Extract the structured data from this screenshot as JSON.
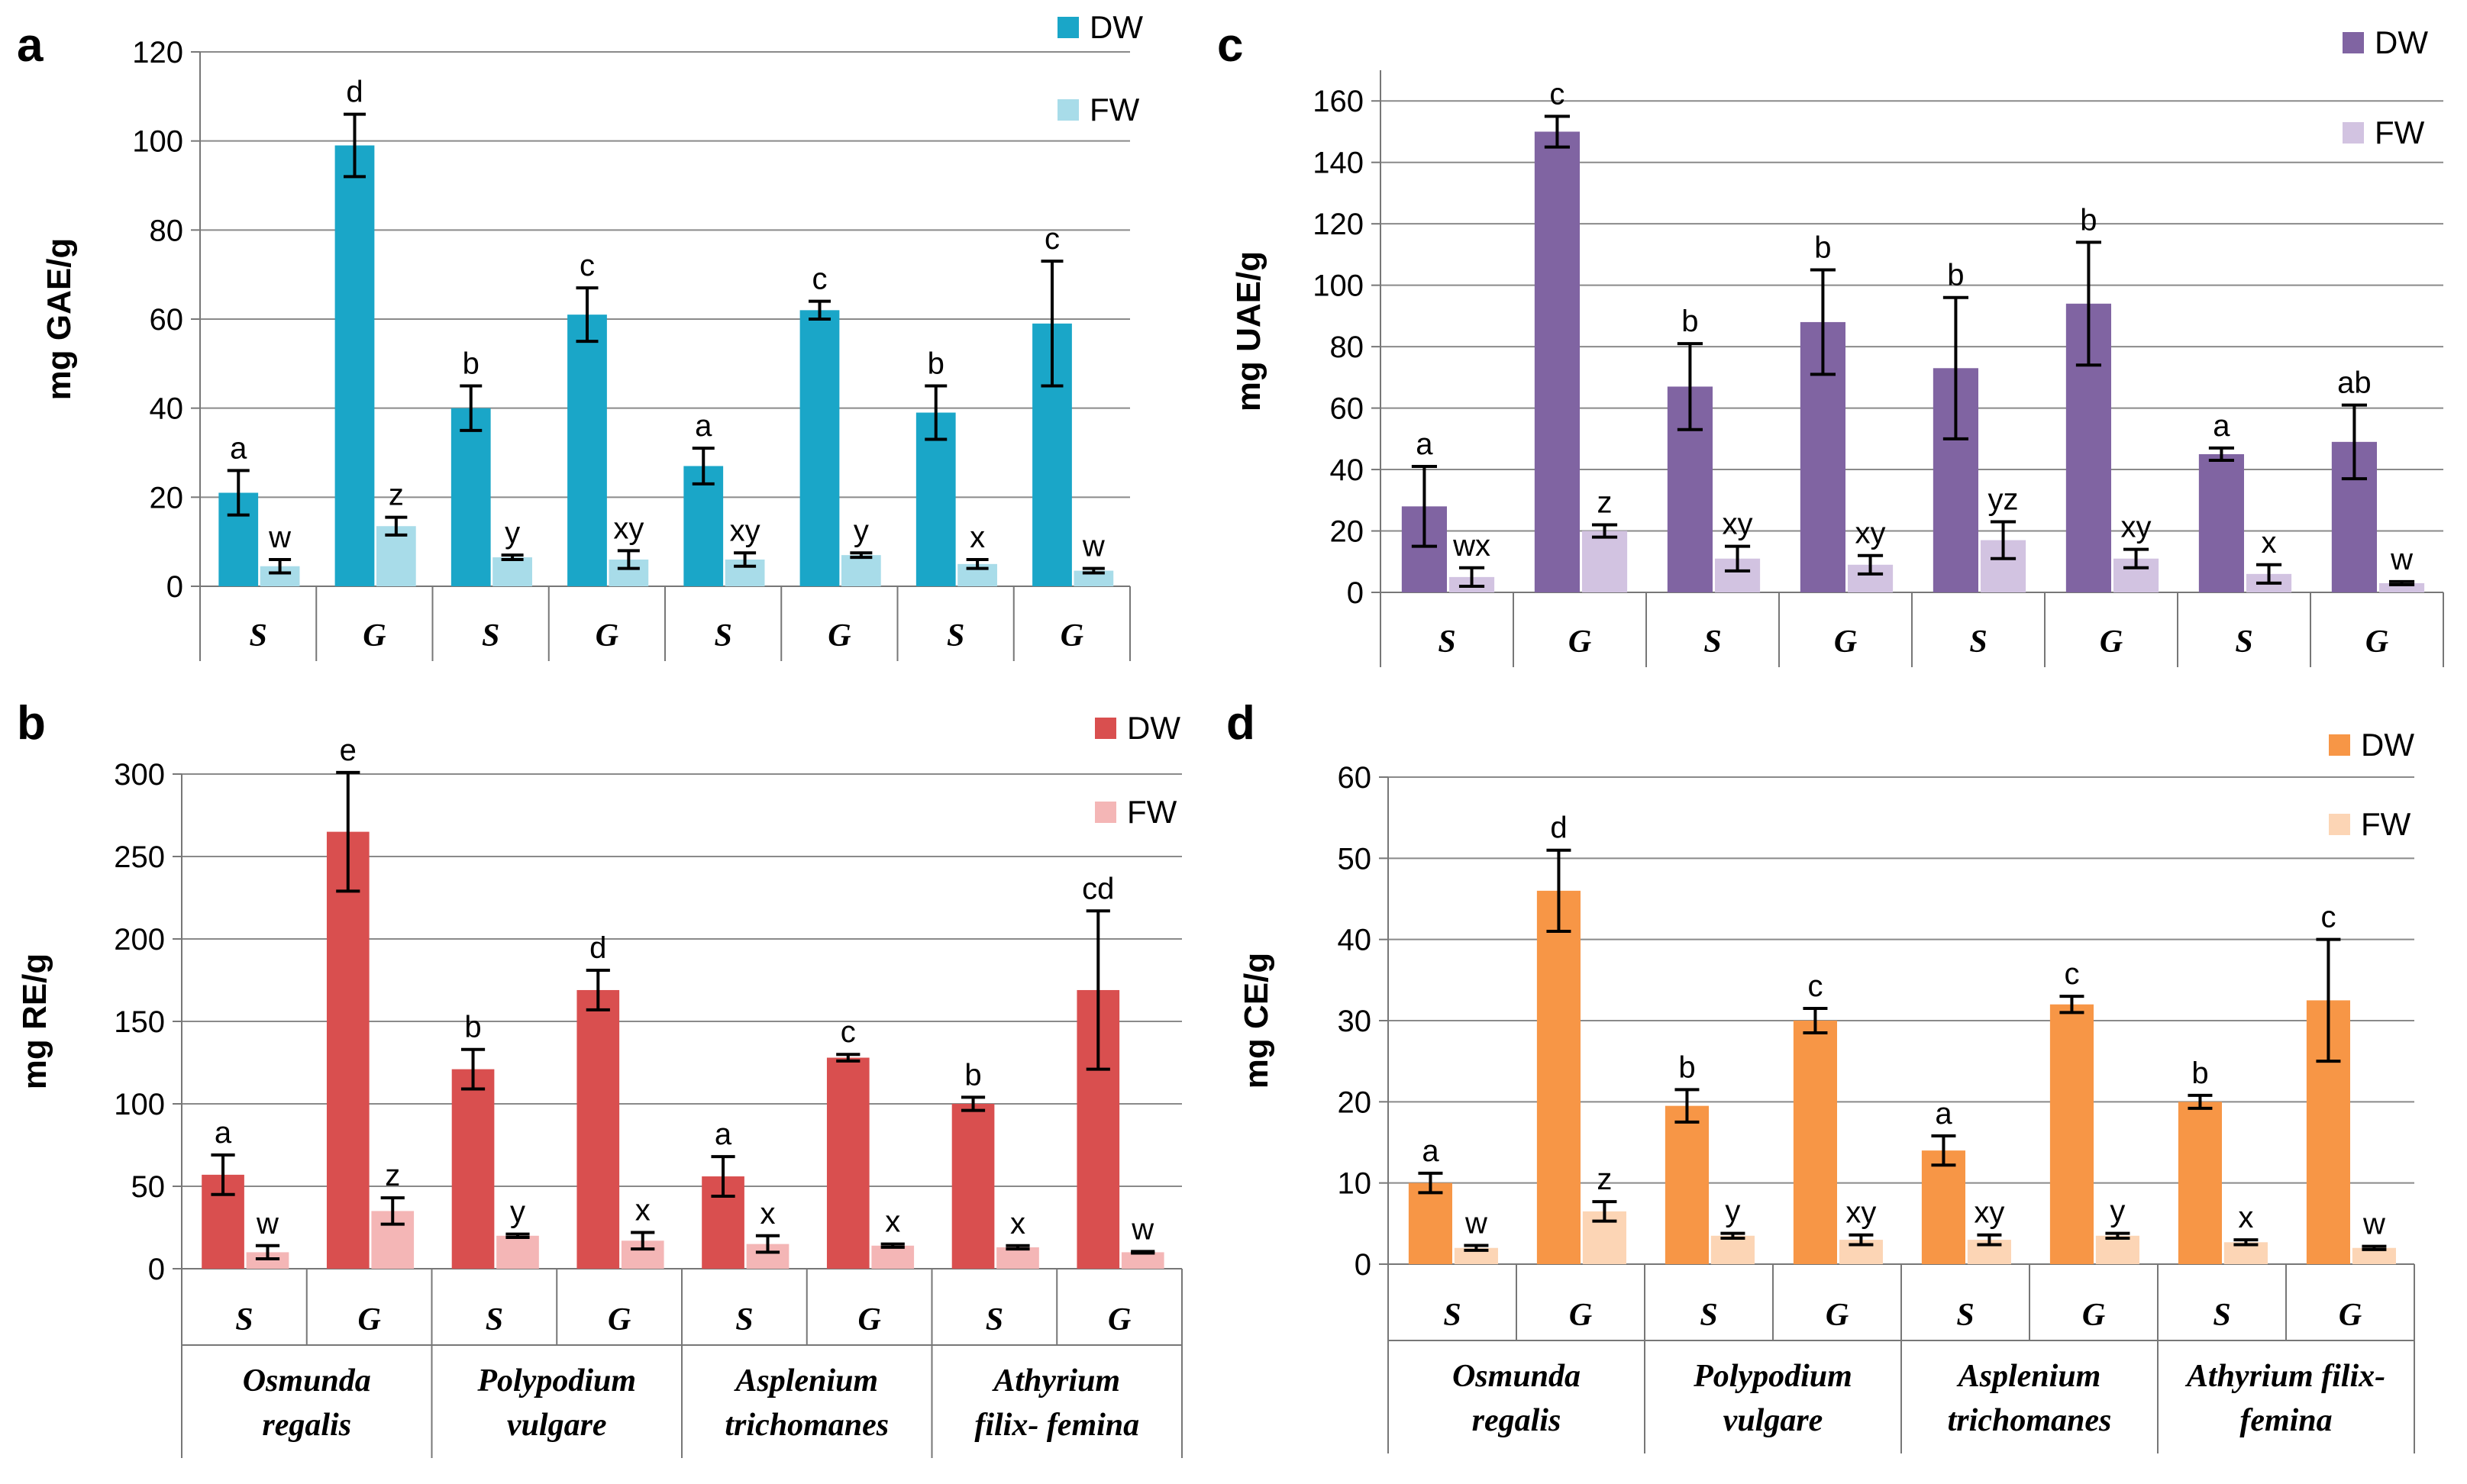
{
  "chart_data": [
    {
      "panel": "a",
      "type": "bar",
      "ylabel": "mg GAE/g",
      "ylim": [
        0,
        120
      ],
      "yticks": [
        0,
        20,
        40,
        60,
        80,
        100,
        120
      ],
      "categories": [
        "S",
        "G",
        "S",
        "G",
        "S",
        "G",
        "S",
        "G"
      ],
      "species": [],
      "series": [
        {
          "name": "DW",
          "color": "#1aa6c8",
          "values": [
            21,
            99,
            40,
            61,
            27,
            62,
            39,
            59
          ],
          "errors": [
            5,
            7,
            5,
            6,
            4,
            2,
            6,
            14
          ],
          "labels": [
            "a",
            "d",
            "b",
            "c",
            "a",
            "c",
            "b",
            "c"
          ]
        },
        {
          "name": "FW",
          "color": "#a8dce9",
          "values": [
            4.5,
            13.5,
            6.5,
            6,
            6,
            7,
            5,
            3.5
          ],
          "errors": [
            1.5,
            2,
            0.5,
            2,
            1.5,
            0.5,
            1,
            0.5
          ],
          "labels": [
            "w",
            "z",
            "y",
            "xy",
            "xy",
            "y",
            "x",
            "w"
          ]
        }
      ]
    },
    {
      "panel": "b",
      "type": "bar",
      "ylabel": "mg  RE/g",
      "ylim": [
        0,
        300
      ],
      "yticks": [
        0,
        50,
        100,
        150,
        200,
        250,
        300
      ],
      "categories": [
        "S",
        "G",
        "S",
        "G",
        "S",
        "G",
        "S",
        "G"
      ],
      "species": [
        [
          "Osmunda",
          "regalis"
        ],
        [
          "Polypodium",
          "vulgare"
        ],
        [
          "Asplenium",
          "trichomanes"
        ],
        [
          "Athyrium",
          "filix- femina"
        ]
      ],
      "series": [
        {
          "name": "DW",
          "color": "#d94f4f",
          "values": [
            57,
            265,
            121,
            169,
            56,
            128,
            100,
            169
          ],
          "errors": [
            12,
            36,
            12,
            12,
            12,
            2,
            4,
            48
          ],
          "labels": [
            "a",
            "e",
            "b",
            "d",
            "a",
            "c",
            "b",
            "cd"
          ]
        },
        {
          "name": "FW",
          "color": "#f4b6b6",
          "values": [
            10,
            35,
            20,
            17,
            15,
            14,
            13,
            10
          ],
          "errors": [
            4,
            8,
            1,
            5,
            5,
            1,
            1,
            0.5
          ],
          "labels": [
            "w",
            "z",
            "y",
            "x",
            "x",
            "x",
            "x",
            "w"
          ]
        }
      ]
    },
    {
      "panel": "c",
      "type": "bar",
      "ylabel": "mg  UAE/g",
      "ylim": [
        0,
        170
      ],
      "yticks": [
        0,
        20,
        40,
        60,
        80,
        100,
        120,
        140,
        160
      ],
      "categories": [
        "S",
        "G",
        "S",
        "G",
        "S",
        "G",
        "S",
        "G"
      ],
      "species": [],
      "series": [
        {
          "name": "DW",
          "color": "#8064a2",
          "values": [
            28,
            150,
            67,
            88,
            73,
            94,
            45,
            49
          ],
          "errors": [
            13,
            5,
            14,
            17,
            23,
            20,
            2,
            12
          ],
          "labels": [
            "a",
            "c",
            "b",
            "b",
            "b",
            "b",
            "a",
            "ab"
          ]
        },
        {
          "name": "FW",
          "color": "#d2c3e1",
          "values": [
            5,
            20,
            11,
            9,
            17,
            11,
            6,
            3
          ],
          "errors": [
            3,
            2,
            4,
            3,
            6,
            3,
            3,
            0.5
          ],
          "labels": [
            "wx",
            "z",
            "xy",
            "xy",
            "yz",
            "xy",
            "x",
            "w"
          ]
        }
      ]
    },
    {
      "panel": "d",
      "type": "bar",
      "ylabel": "mg CE/g",
      "ylim": [
        0,
        60
      ],
      "yticks": [
        0,
        10,
        20,
        30,
        40,
        50,
        60
      ],
      "categories": [
        "S",
        "G",
        "S",
        "G",
        "S",
        "G",
        "S",
        "G"
      ],
      "species": [
        [
          "Osmunda",
          "regalis"
        ],
        [
          "Polypodium",
          "vulgare"
        ],
        [
          "Asplenium",
          "trichomanes"
        ],
        [
          "Athyrium filix-",
          "femina"
        ]
      ],
      "series": [
        {
          "name": "DW",
          "color": "#f79646",
          "values": [
            10,
            46,
            19.5,
            30,
            14,
            32,
            20,
            32.5
          ],
          "errors": [
            1.2,
            5,
            2,
            1.5,
            1.8,
            1,
            0.8,
            7.5
          ],
          "labels": [
            "a",
            "d",
            "b",
            "c",
            "a",
            "c",
            "b",
            "c"
          ]
        },
        {
          "name": "FW",
          "color": "#fcd5b5",
          "values": [
            2,
            6.5,
            3.5,
            3,
            3,
            3.5,
            2.7,
            2
          ],
          "errors": [
            0.3,
            1.2,
            0.3,
            0.6,
            0.6,
            0.3,
            0.3,
            0.2
          ],
          "labels": [
            "w",
            "z",
            "y",
            "xy",
            "xy",
            "y",
            "x",
            "w"
          ]
        }
      ]
    }
  ]
}
